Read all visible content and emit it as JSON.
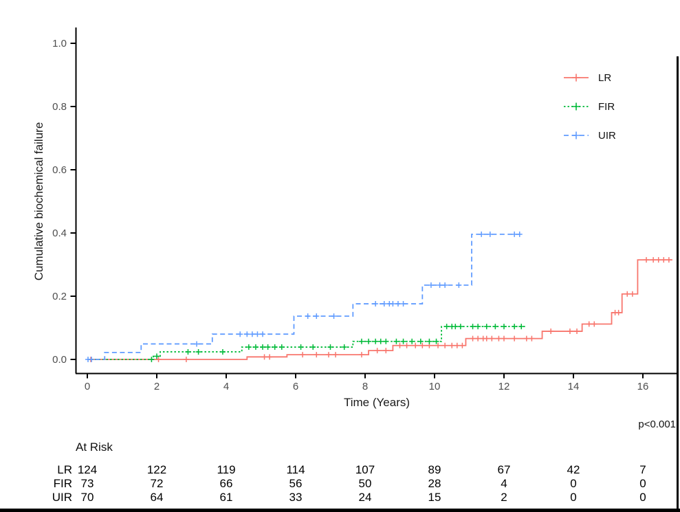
{
  "figure": {
    "p_value": "p<0.001"
  },
  "chart_data": {
    "type": "line",
    "subtype": "kaplan-meier-cumulative-incidence-step",
    "title": "",
    "xlabel": "Time (Years)",
    "ylabel": "Cumulative biochemical failure",
    "xlim": [
      0,
      17
    ],
    "ylim": [
      0,
      1.05
    ],
    "xticks": [
      0,
      2,
      4,
      6,
      8,
      10,
      12,
      14,
      16
    ],
    "yticks": [
      0.0,
      0.2,
      0.4,
      0.6,
      0.8,
      1.0
    ],
    "ytick_labels": [
      "0.0",
      "0.2",
      "0.4",
      "0.6",
      "0.8",
      "1.0"
    ],
    "grid": "off",
    "legend_position": "top-right",
    "axis_color": "#000000",
    "tick_label_color": "#4d4d4d",
    "series": [
      {
        "name": "LR",
        "color": "#F8766D",
        "dash": "solid",
        "steps": [
          [
            0,
            0
          ],
          [
            4.6,
            0.008
          ],
          [
            5.75,
            0.015
          ],
          [
            8.1,
            0.028
          ],
          [
            8.8,
            0.044
          ],
          [
            10.9,
            0.066
          ],
          [
            13.1,
            0.089
          ],
          [
            14.25,
            0.112
          ],
          [
            15.1,
            0.148
          ],
          [
            15.4,
            0.207
          ],
          [
            15.85,
            0.315
          ]
        ],
        "end": 16.85,
        "censor": [
          0.1,
          2.05,
          2.85,
          5.1,
          5.25,
          6.2,
          6.6,
          6.95,
          7.15,
          7.9,
          8.35,
          8.6,
          9.0,
          9.2,
          9.45,
          9.65,
          9.85,
          10.1,
          10.3,
          10.5,
          10.65,
          10.8,
          11.1,
          11.25,
          11.4,
          11.5,
          11.65,
          11.85,
          12.0,
          12.3,
          12.65,
          12.8,
          13.35,
          13.9,
          14.1,
          14.45,
          14.6,
          15.2,
          15.3,
          15.55,
          15.7,
          16.1,
          16.3,
          16.45,
          16.6,
          16.75
        ]
      },
      {
        "name": "FIR",
        "color": "#00BA38",
        "dash": "dotted",
        "steps": [
          [
            0,
            0
          ],
          [
            1.9,
            0.01
          ],
          [
            2.1,
            0.024
          ],
          [
            4.45,
            0.039
          ],
          [
            7.65,
            0.057
          ],
          [
            10.2,
            0.104
          ]
        ],
        "end": 12.65,
        "censor": [
          1.85,
          2.0,
          2.9,
          3.2,
          3.9,
          4.65,
          4.85,
          5.05,
          5.2,
          5.4,
          5.6,
          6.15,
          6.5,
          7.0,
          7.4,
          7.9,
          8.1,
          8.3,
          8.45,
          8.6,
          8.9,
          9.1,
          9.35,
          9.6,
          9.85,
          10.05,
          10.35,
          10.5,
          10.6,
          10.75,
          11.1,
          11.25,
          11.5,
          11.75,
          12.0,
          12.3,
          12.5
        ]
      },
      {
        "name": "UIR",
        "color": "#619CFF",
        "dash": "dashed",
        "steps": [
          [
            0,
            0
          ],
          [
            0.5,
            0.022
          ],
          [
            1.55,
            0.049
          ],
          [
            3.6,
            0.08
          ],
          [
            5.95,
            0.137
          ],
          [
            7.65,
            0.176
          ],
          [
            9.65,
            0.235
          ],
          [
            11.07,
            0.396
          ]
        ],
        "end": 12.55,
        "censor": [
          0.02,
          0.12,
          3.15,
          4.4,
          4.6,
          4.75,
          4.9,
          5.05,
          6.35,
          6.6,
          7.1,
          8.3,
          8.55,
          8.7,
          8.8,
          8.95,
          9.1,
          9.9,
          10.15,
          10.3,
          10.7,
          11.35,
          11.6,
          12.3,
          12.45
        ]
      }
    ]
  },
  "at_risk": {
    "title": "At Risk",
    "time_points": [
      0,
      2,
      4,
      6,
      8,
      10,
      12,
      14,
      16
    ],
    "rows": [
      {
        "label": "LR",
        "counts": [
          124,
          122,
          119,
          114,
          107,
          89,
          67,
          42,
          7
        ]
      },
      {
        "label": "FIR",
        "counts": [
          73,
          72,
          66,
          56,
          50,
          28,
          4,
          0,
          0
        ]
      },
      {
        "label": "UIR",
        "counts": [
          70,
          64,
          61,
          33,
          24,
          15,
          2,
          0,
          0
        ]
      }
    ]
  }
}
